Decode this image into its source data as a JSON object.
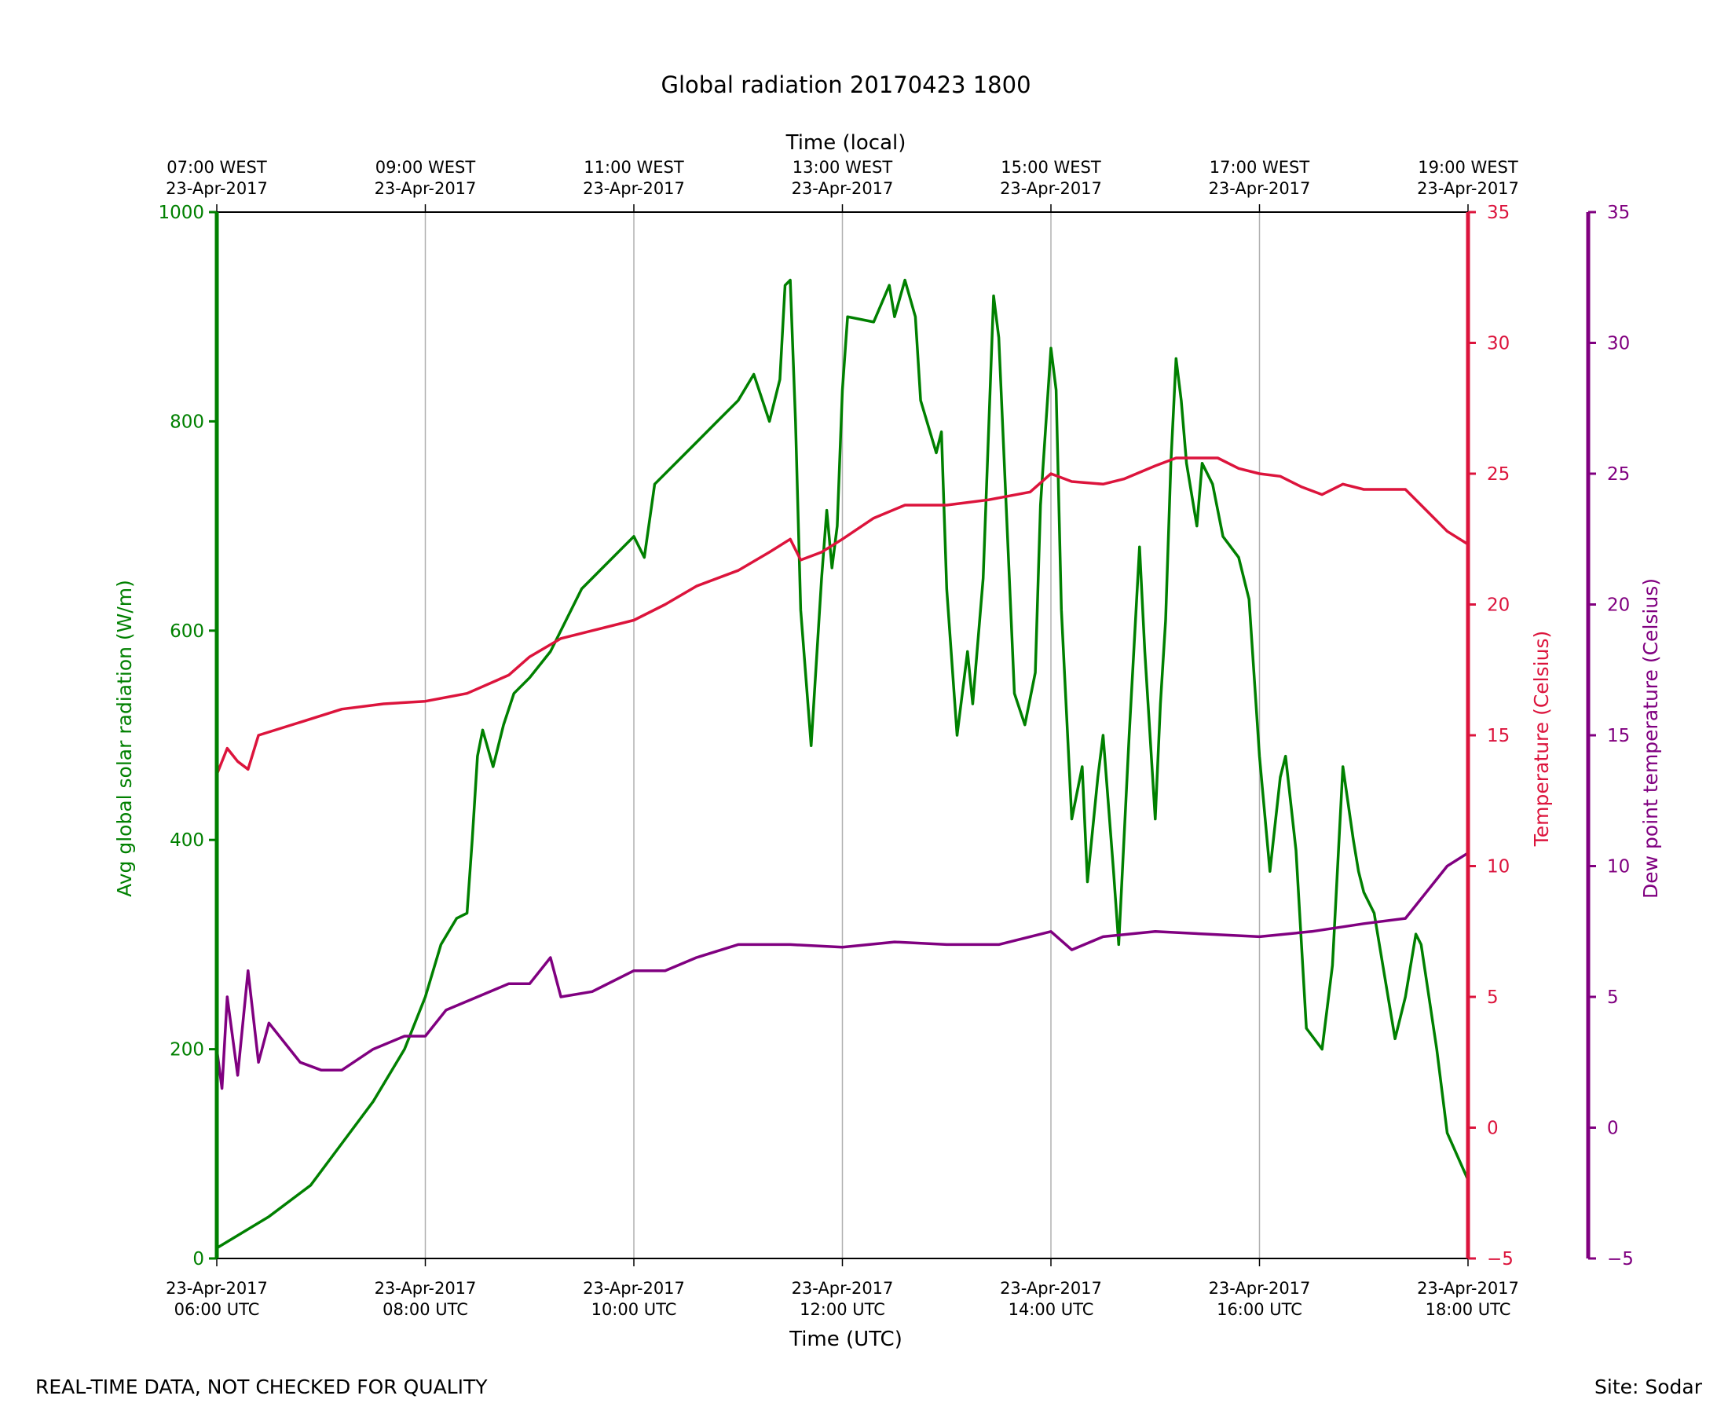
{
  "chart_data": {
    "type": "line",
    "title": "Global radiation 20170423 1800",
    "xlabel": "Time (UTC)",
    "x2label": "Time (local)",
    "xlim_hours_utc": [
      6,
      18
    ],
    "x_ticks": [
      {
        "h": 6,
        "utc": [
          "23-Apr-2017",
          "06:00 UTC"
        ],
        "local": [
          "07:00 WEST",
          "23-Apr-2017"
        ]
      },
      {
        "h": 8,
        "utc": [
          "23-Apr-2017",
          "08:00 UTC"
        ],
        "local": [
          "09:00 WEST",
          "23-Apr-2017"
        ]
      },
      {
        "h": 10,
        "utc": [
          "23-Apr-2017",
          "10:00 UTC"
        ],
        "local": [
          "11:00 WEST",
          "23-Apr-2017"
        ]
      },
      {
        "h": 12,
        "utc": [
          "23-Apr-2017",
          "12:00 UTC"
        ],
        "local": [
          "13:00 WEST",
          "23-Apr-2017"
        ]
      },
      {
        "h": 14,
        "utc": [
          "23-Apr-2017",
          "14:00 UTC"
        ],
        "local": [
          "15:00 WEST",
          "23-Apr-2017"
        ]
      },
      {
        "h": 16,
        "utc": [
          "23-Apr-2017",
          "16:00 UTC"
        ],
        "local": [
          "17:00 WEST",
          "23-Apr-2017"
        ]
      },
      {
        "h": 18,
        "utc": [
          "23-Apr-2017",
          "18:00 UTC"
        ],
        "local": [
          "19:00 WEST",
          "23-Apr-2017"
        ]
      }
    ],
    "grid": "vertical",
    "axes": [
      {
        "name": "radiation",
        "label": "Avg global solar radiation (W/m)",
        "color": "#008000",
        "ylim": [
          0,
          1000
        ],
        "ticks": [
          0,
          200,
          400,
          600,
          800,
          1000
        ],
        "side": "left"
      },
      {
        "name": "temperature",
        "label": "Temperature (Celsius)",
        "color": "#dc143c",
        "ylim": [
          -5,
          35
        ],
        "ticks": [
          "−5",
          "0",
          "5",
          "10",
          "15",
          "20",
          "25",
          "30",
          "35"
        ],
        "side": "right"
      },
      {
        "name": "dewpoint",
        "label": "Dew point temperature (Celsius)",
        "color": "#800080",
        "ylim": [
          -5,
          35
        ],
        "ticks": [
          "−5",
          "0",
          "5",
          "10",
          "15",
          "20",
          "25",
          "30",
          "35"
        ],
        "side": "right-outer"
      }
    ],
    "series": [
      {
        "name": "Avg global solar radiation",
        "axis": 0,
        "color": "#008000",
        "x": [
          6.0,
          6.5,
          6.9,
          7.2,
          7.5,
          7.8,
          8.0,
          8.15,
          8.3,
          8.4,
          8.45,
          8.5,
          8.55,
          8.65,
          8.75,
          8.85,
          9.0,
          9.2,
          9.5,
          9.9,
          10.0,
          10.1,
          10.2,
          10.5,
          10.8,
          11.0,
          11.15,
          11.3,
          11.4,
          11.45,
          11.5,
          11.55,
          11.6,
          11.7,
          11.8,
          11.85,
          11.9,
          11.95,
          12.0,
          12.05,
          12.3,
          12.45,
          12.5,
          12.6,
          12.7,
          12.75,
          12.9,
          12.95,
          13.0,
          13.1,
          13.2,
          13.25,
          13.35,
          13.45,
          13.5,
          13.65,
          13.75,
          13.85,
          13.9,
          14.0,
          14.05,
          14.1,
          14.2,
          14.3,
          14.35,
          14.45,
          14.5,
          14.6,
          14.65,
          14.75,
          14.85,
          14.9,
          15.0,
          15.05,
          15.1,
          15.15,
          15.2,
          15.25,
          15.3,
          15.4,
          15.45,
          15.55,
          15.65,
          15.8,
          15.9,
          16.0,
          16.1,
          16.2,
          16.25,
          16.35,
          16.45,
          16.6,
          16.7,
          16.8,
          16.9,
          16.95,
          17.0,
          17.1,
          17.3,
          17.4,
          17.5,
          17.55,
          17.7,
          17.8,
          18.0
        ],
        "values": [
          10,
          40,
          70,
          110,
          150,
          200,
          250,
          300,
          325,
          330,
          400,
          480,
          505,
          470,
          510,
          540,
          555,
          580,
          640,
          680,
          690,
          670,
          740,
          770,
          800,
          820,
          845,
          800,
          840,
          930,
          935,
          800,
          620,
          490,
          650,
          715,
          660,
          700,
          830,
          900,
          895,
          930,
          900,
          935,
          900,
          820,
          770,
          790,
          640,
          500,
          580,
          530,
          650,
          920,
          880,
          540,
          510,
          560,
          720,
          870,
          830,
          620,
          420,
          470,
          360,
          460,
          500,
          370,
          300,
          500,
          680,
          580,
          420,
          530,
          610,
          760,
          860,
          820,
          760,
          700,
          760,
          740,
          690,
          670,
          630,
          480,
          370,
          460,
          480,
          390,
          220,
          200,
          280,
          470,
          400,
          370,
          350,
          330,
          210,
          250,
          310,
          300,
          200,
          120,
          75
        ]
      },
      {
        "name": "Temperature",
        "axis": 1,
        "color": "#dc143c",
        "x": [
          6.0,
          6.1,
          6.2,
          6.3,
          6.4,
          6.8,
          7.2,
          7.6,
          8.0,
          8.4,
          8.8,
          9.0,
          9.3,
          9.6,
          10.0,
          10.3,
          10.6,
          11.0,
          11.3,
          11.5,
          11.6,
          11.8,
          12.0,
          12.3,
          12.6,
          13.0,
          13.4,
          13.8,
          14.0,
          14.2,
          14.5,
          14.7,
          15.0,
          15.2,
          15.6,
          15.8,
          16.0,
          16.2,
          16.4,
          16.6,
          16.8,
          17.0,
          17.4,
          17.6,
          17.8,
          18.0
        ],
        "values": [
          13.5,
          14.5,
          14.0,
          13.7,
          15.0,
          15.5,
          16.0,
          16.2,
          16.3,
          16.6,
          17.3,
          18.0,
          18.7,
          19.0,
          19.4,
          20.0,
          20.7,
          21.3,
          22.0,
          22.5,
          21.7,
          22.0,
          22.5,
          23.3,
          23.8,
          23.8,
          24.0,
          24.3,
          25.0,
          24.7,
          24.6,
          24.8,
          25.3,
          25.6,
          25.6,
          25.2,
          25.0,
          24.9,
          24.5,
          24.2,
          24.6,
          24.4,
          24.4,
          23.6,
          22.8,
          22.3
        ]
      },
      {
        "name": "Dew point temperature",
        "axis": 2,
        "color": "#800080",
        "x": [
          6.0,
          6.05,
          6.1,
          6.2,
          6.3,
          6.4,
          6.5,
          6.7,
          6.8,
          7.0,
          7.2,
          7.5,
          7.8,
          8.0,
          8.2,
          8.5,
          8.8,
          9.0,
          9.2,
          9.3,
          9.6,
          10.0,
          10.3,
          10.6,
          11.0,
          11.5,
          12.0,
          12.5,
          13.0,
          13.5,
          14.0,
          14.2,
          14.5,
          15.0,
          15.5,
          16.0,
          16.5,
          17.0,
          17.4,
          17.6,
          17.8,
          18.0
        ],
        "values": [
          3,
          1.5,
          5,
          2,
          6,
          2.5,
          4,
          3,
          2.5,
          2.2,
          2.2,
          3,
          3.5,
          3.5,
          4.5,
          5,
          5.5,
          5.5,
          6.5,
          5,
          5.2,
          6,
          6,
          6.5,
          7,
          7,
          6.9,
          7.1,
          7,
          7,
          7.5,
          6.8,
          7.3,
          7.5,
          7.4,
          7.3,
          7.5,
          7.8,
          8,
          9,
          10,
          10.5
        ]
      }
    ]
  },
  "footer": {
    "left": "REAL-TIME DATA, NOT CHECKED FOR QUALITY",
    "right": "Site: Sodar"
  }
}
